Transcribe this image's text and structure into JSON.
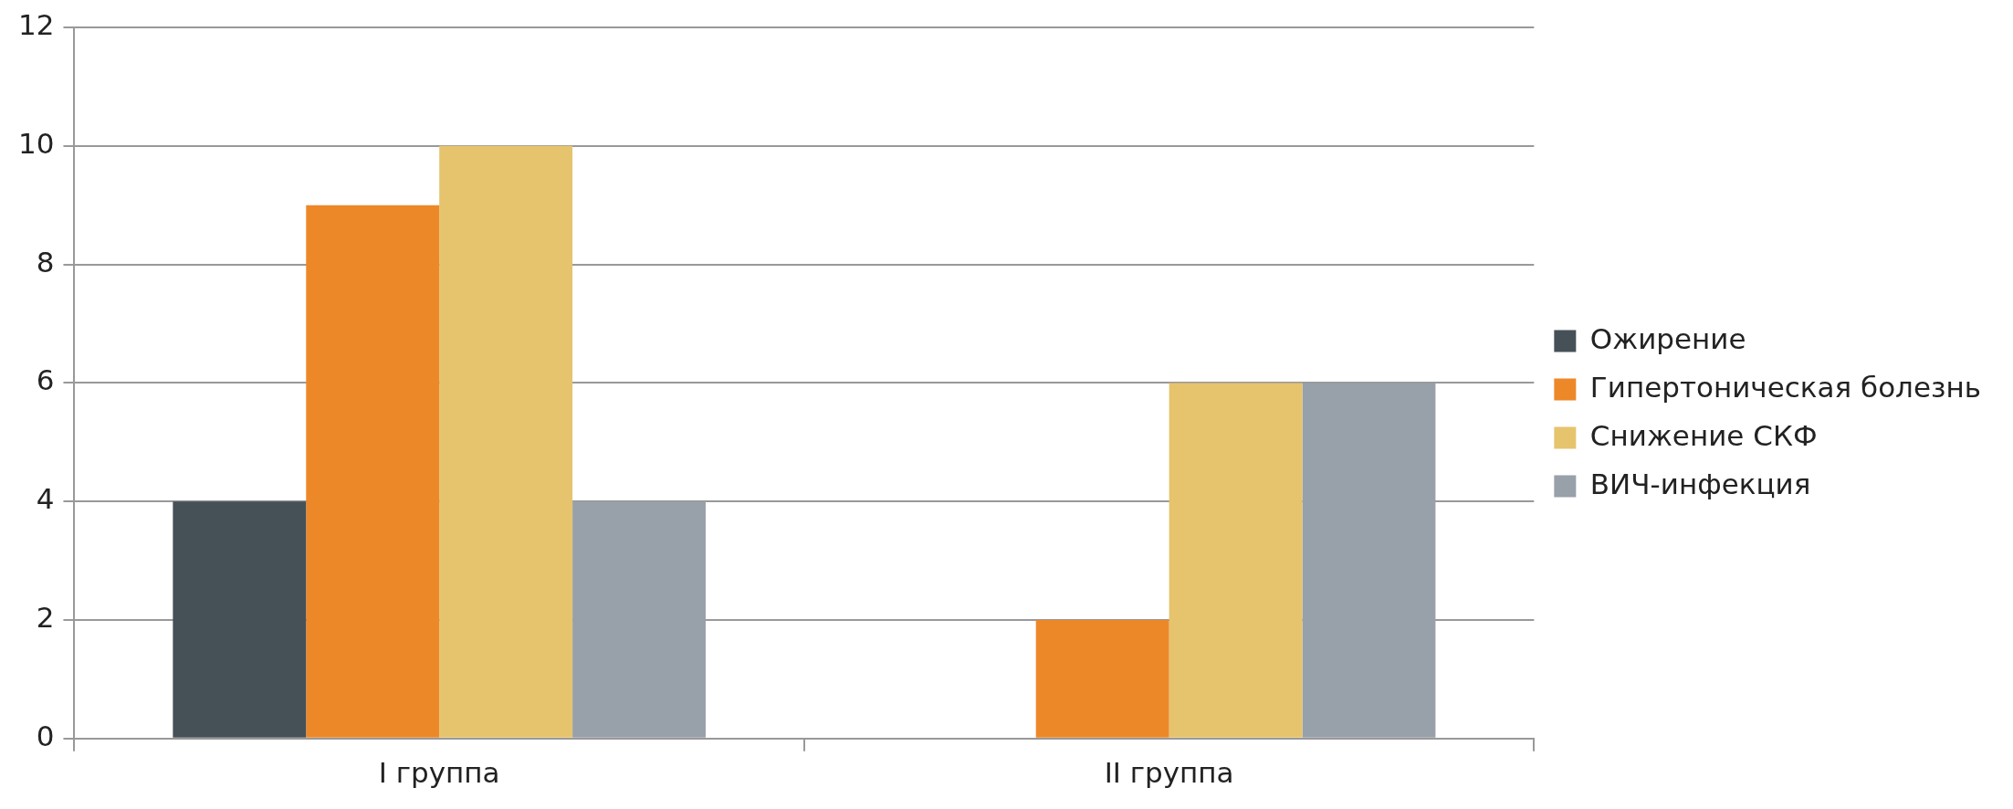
{
  "chart_data": {
    "type": "bar",
    "categories": [
      "I группа",
      "II группа"
    ],
    "series": [
      {
        "name": "Ожирение",
        "color": "#465157",
        "values": [
          4,
          0
        ]
      },
      {
        "name": "Гипертоническая болезнь",
        "color": "#ed8829",
        "values": [
          9,
          2
        ]
      },
      {
        "name": "Снижение СКФ",
        "color": "#e6c46e",
        "values": [
          10,
          6
        ]
      },
      {
        "name": "ВИЧ-инфекция",
        "color": "#98a0aa",
        "values": [
          4,
          6
        ]
      }
    ],
    "ylim": [
      0,
      12
    ],
    "yticks": [
      0,
      2,
      4,
      6,
      8,
      10,
      12
    ],
    "grid": "y",
    "legend": "right"
  }
}
